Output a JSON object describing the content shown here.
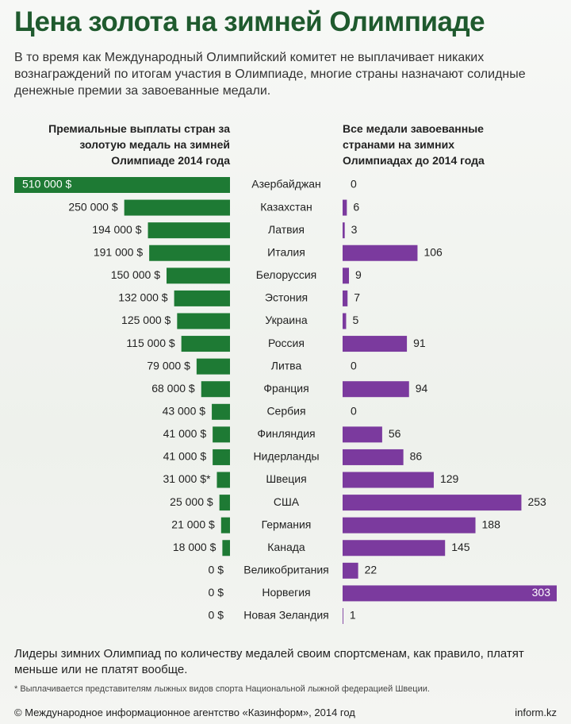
{
  "header": {
    "title": "Цена золота на зимней Олимпиаде",
    "subtitle": "В то время как Международный Олимпийский комитет не выплачивает никаких вознаграждений по итогам участия в Олимпиаде, многие страны назначают солидные денежные премии за завоеванные медали."
  },
  "chart_data": [
    {
      "type": "bar",
      "orientation": "horizontal",
      "direction": "left",
      "title": "Премиальные выплаты стран за золотую медаль на зимней Олимпиаде 2014 года",
      "categories": [
        "Азербайджан",
        "Казахстан",
        "Латвия",
        "Италия",
        "Белоруссия",
        "Эстония",
        "Украина",
        "Россия",
        "Литва",
        "Франция",
        "Сербия",
        "Финляндия",
        "Нидерланды",
        "Швеция",
        "США",
        "Германия",
        "Канада",
        "Великобритания",
        "Норвегия",
        "Новая Зеландия"
      ],
      "values": [
        510000,
        250000,
        194000,
        191000,
        150000,
        132000,
        125000,
        115000,
        79000,
        68000,
        43000,
        41000,
        41000,
        31000,
        25000,
        21000,
        18000,
        0,
        0,
        0
      ],
      "value_labels": [
        "510 000 $",
        "250 000 $",
        "194 000 $",
        "191 000 $",
        "150 000 $",
        "132 000 $",
        "125 000 $",
        "115 000 $",
        "79 000 $",
        "68 000 $",
        "43 000 $",
        "41 000 $",
        "41 000 $",
        "31 000 $*",
        "25 000 $",
        "21 000 $",
        "18 000 $",
        "0 $",
        "0 $",
        "0 $"
      ],
      "color": "#1e7a34",
      "xlim": [
        0,
        510000
      ]
    },
    {
      "type": "bar",
      "orientation": "horizontal",
      "direction": "right",
      "title": "Все медали завоеванные странами на зимних Олимпиадах до 2014 года",
      "values": [
        0,
        6,
        3,
        106,
        9,
        7,
        5,
        91,
        0,
        94,
        0,
        56,
        86,
        129,
        253,
        188,
        145,
        22,
        303,
        1
      ],
      "color": "#7b3a9e",
      "xlim": [
        0,
        303
      ]
    }
  ],
  "footer": {
    "note": "Лидеры зимних Олимпиад по количеству медалей своим спортсменам, как правило, платят меньше или не платят вообще.",
    "footnote": "* Выплачивается представителям лыжных видов спорта Национальной лыжной федерацией Швеции.",
    "credit": "© Международное информационное агентство «Казинформ», 2014 год",
    "source": "inform.kz"
  }
}
